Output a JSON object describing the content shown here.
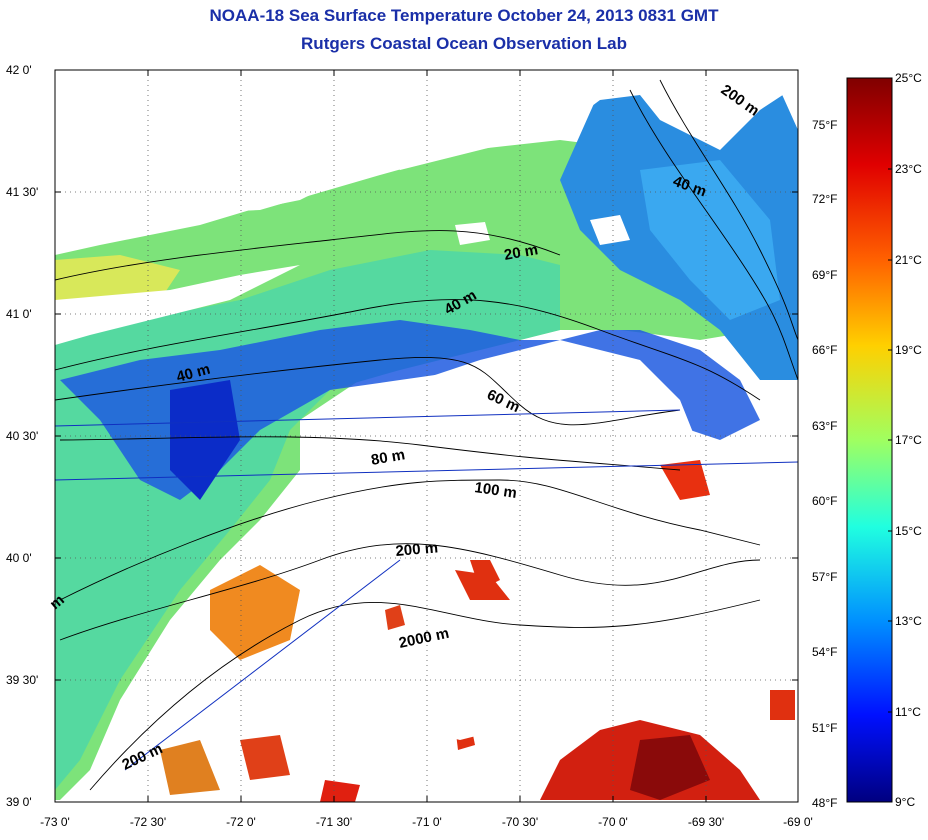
{
  "title": "NOAA-18 Sea Surface Temperature October 24, 2013 0831 GMT",
  "subtitle": "Rutgers Coastal Ocean Observation Lab",
  "lat_ticks": [
    "42 0'",
    "41 30'",
    "41 0'",
    "40 30'",
    "40 0'",
    "39 30'",
    "39 0'"
  ],
  "lon_ticks": [
    "-73 0'",
    "-72 30'",
    "-72 0'",
    "-71 30'",
    "-71 0'",
    "-70 30'",
    "-70 0'",
    "-69 30'",
    "-69 0'"
  ],
  "colorbar": {
    "celsius": [
      "25°C",
      "23°C",
      "21°C",
      "19°C",
      "17°C",
      "15°C",
      "13°C",
      "11°C",
      "9°C"
    ],
    "fahrenheit": [
      "75°F",
      "72°F",
      "69°F",
      "66°F",
      "63°F",
      "60°F",
      "57°F",
      "54°F",
      "51°F",
      "48°F"
    ]
  },
  "contour_labels": [
    "20 m",
    "40 m",
    "40 m",
    "40 m",
    "60 m",
    "80 m",
    "100 m",
    "200 m",
    "2000 m",
    "200 m",
    "200 m",
    "m"
  ]
}
